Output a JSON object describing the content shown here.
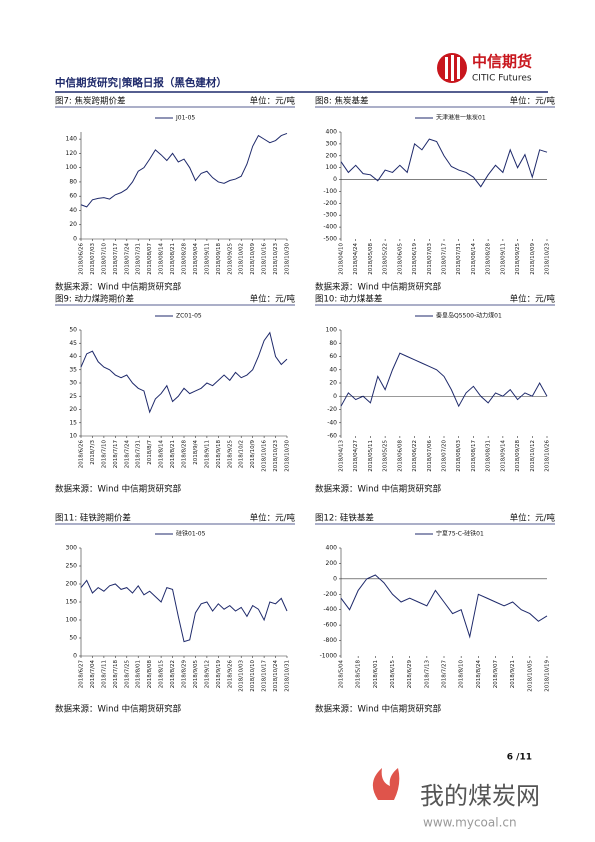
{
  "header": {
    "title": "中信期货研究|策略日报（黑色建材）",
    "logo_cn": "中信期货",
    "logo_en": "CITIC Futures"
  },
  "figures": [
    {
      "title": "图7: 焦炭跨期价差",
      "unit": "单位：元/吨",
      "source": "数据来源：Wind  中信期货研究部"
    },
    {
      "title": "图8: 焦炭基差",
      "unit": "单位：元/吨",
      "source": "数据来源：Wind  中信期货研究部"
    },
    {
      "title": "图9: 动力煤跨期价差",
      "unit": "单位：元/吨",
      "source": "数据来源：Wind  中信期货研究部"
    },
    {
      "title": "图10: 动力煤基差",
      "unit": "单位：元/吨",
      "source": "数据来源：Wind  中信期货研究部"
    },
    {
      "title": "图11: 硅铁跨期价差",
      "unit": "单位：元/吨",
      "source": "数据来源：Wind  中信期货研究部"
    },
    {
      "title": "图12: 硅铁基差",
      "unit": "单位：元/吨",
      "source": "数据来源：Wind  中信期货研究部"
    }
  ],
  "chart_data": [
    {
      "type": "line",
      "ylim": [
        0,
        150
      ],
      "yticks": [
        0,
        20,
        40,
        60,
        80,
        100,
        120,
        140
      ],
      "categories": [
        "2018/06/26",
        null,
        "2018/07/03",
        null,
        "2018/07/10",
        null,
        "2018/07/17",
        null,
        "2018/07/24",
        null,
        "2018/07/31",
        null,
        "2018/08/07",
        null,
        "2018/08/14",
        null,
        "2018/08/21",
        null,
        "2018/08/28",
        null,
        "2018/09/04",
        null,
        "2018/09/11",
        null,
        "2018/09/18",
        null,
        "2018/09/25",
        null,
        "2018/10/02",
        null,
        "2018/10/09",
        null,
        "2018/10/16",
        null,
        "2018/10/23",
        null,
        "2018/10/30"
      ],
      "series": [
        {
          "name": "J01-05",
          "color": "#1f2a6b",
          "values": [
            48,
            45,
            55,
            57,
            58,
            56,
            62,
            65,
            70,
            80,
            95,
            100,
            112,
            125,
            118,
            110,
            120,
            108,
            112,
            100,
            82,
            92,
            95,
            86,
            80,
            78,
            82,
            84,
            88,
            105,
            130,
            145,
            140,
            135,
            138,
            145,
            148
          ]
        }
      ]
    },
    {
      "type": "line",
      "ylim": [
        -500,
        400
      ],
      "yticks": [
        -500,
        -400,
        -300,
        -200,
        -100,
        0,
        100,
        200,
        300,
        400
      ],
      "categories": [
        "2018/04/10",
        null,
        "2018/04/24",
        null,
        "2018/05/08",
        null,
        "2018/05/22",
        null,
        "2018/06/05",
        null,
        "2018/06/19",
        null,
        "2018/07/03",
        null,
        "2018/07/17",
        null,
        "2018/07/31",
        null,
        "2018/08/14",
        null,
        "2018/08/28",
        null,
        "2018/09/11",
        null,
        "2018/09/25",
        null,
        "2018/10/09",
        null,
        "2018/10/23"
      ],
      "series": [
        {
          "name": "天津港准一焦炭01",
          "color": "#1f2a6b",
          "values": [
            150,
            60,
            120,
            50,
            40,
            -10,
            80,
            60,
            120,
            60,
            300,
            250,
            340,
            320,
            200,
            110,
            80,
            60,
            20,
            -60,
            40,
            120,
            60,
            250,
            100,
            210,
            20,
            250,
            230
          ]
        }
      ]
    },
    {
      "type": "line",
      "ylim": [
        10,
        50
      ],
      "yticks": [
        10,
        15,
        20,
        25,
        30,
        35,
        40,
        45,
        50
      ],
      "categories": [
        "2018/6/26",
        null,
        "2018/7/3",
        null,
        "2018/7/10",
        null,
        "2018/7/17",
        null,
        "2018/7/24",
        null,
        "2018/7/31",
        null,
        "2018/8/7",
        null,
        "2018/8/14",
        null,
        "2018/8/21",
        null,
        "2018/8/28",
        null,
        "2018/9/4",
        null,
        "2018/9/11",
        null,
        "2018/9/18",
        null,
        "2018/9/25",
        null,
        "2018/10/2",
        null,
        "2018/10/9",
        null,
        "2018/10/16",
        null,
        "2018/10/23",
        null,
        "2018/10/30"
      ],
      "series": [
        {
          "name": "ZC01-05",
          "color": "#1f2a6b",
          "values": [
            36,
            41,
            42,
            38,
            36,
            35,
            33,
            32,
            33,
            30,
            28,
            27,
            19,
            24,
            26,
            29,
            23,
            25,
            28,
            26,
            27,
            28,
            30,
            29,
            31,
            33,
            31,
            34,
            32,
            33,
            35,
            40,
            46,
            49,
            40,
            37,
            39
          ]
        }
      ]
    },
    {
      "type": "line",
      "ylim": [
        -60,
        100
      ],
      "yticks": [
        -60,
        -40,
        -20,
        0,
        20,
        40,
        60,
        80,
        100
      ],
      "categories": [
        "2018/04/13",
        null,
        "2018/04/27",
        null,
        "2018/05/11",
        null,
        "2018/05/25",
        null,
        "2018/06/08",
        null,
        "2018/06/22",
        null,
        "2018/07/06",
        null,
        "2018/07/20",
        null,
        "2018/08/03",
        null,
        "2018/08/17",
        null,
        "2018/08/31",
        null,
        "2018/09/14",
        null,
        "2018/09/28",
        null,
        "2018/10/12",
        null,
        "2018/10/26"
      ],
      "series": [
        {
          "name": "秦皇岛Q5500-动力煤01",
          "color": "#1f2a6b",
          "values": [
            -15,
            5,
            -5,
            0,
            -10,
            30,
            10,
            40,
            65,
            60,
            55,
            50,
            45,
            40,
            30,
            10,
            -15,
            5,
            15,
            0,
            -10,
            5,
            0,
            10,
            -5,
            5,
            0,
            20,
            0
          ]
        }
      ]
    },
    {
      "type": "line",
      "ylim": [
        0,
        300
      ],
      "yticks": [
        0,
        50,
        100,
        150,
        200,
        250,
        300
      ],
      "categories": [
        "2018/6/27",
        null,
        "2018/7/04",
        null,
        "2018/7/11",
        null,
        "2018/7/18",
        null,
        "2018/7/25",
        null,
        "2018/8/01",
        null,
        "2018/8/08",
        null,
        "2018/8/15",
        null,
        "2018/8/22",
        null,
        "2018/8/29",
        null,
        "2018/9/05",
        null,
        "2018/9/12",
        null,
        "2018/9/19",
        null,
        "2018/9/26",
        null,
        "2018/10/03",
        null,
        "2018/10/10",
        null,
        "2018/10/17",
        null,
        "2018/10/24",
        null,
        "2018/10/31"
      ],
      "series": [
        {
          "name": "硅铁01-05",
          "color": "#1f2a6b",
          "values": [
            190,
            210,
            175,
            190,
            180,
            195,
            200,
            185,
            190,
            175,
            195,
            170,
            180,
            165,
            150,
            190,
            185,
            110,
            40,
            45,
            120,
            145,
            150,
            125,
            145,
            130,
            140,
            125,
            135,
            110,
            140,
            130,
            100,
            150,
            145,
            160,
            125
          ]
        }
      ]
    },
    {
      "type": "line",
      "ylim": [
        -1000,
        400
      ],
      "yticks": [
        -1000,
        -800,
        -600,
        -400,
        -200,
        0,
        200,
        400
      ],
      "categories": [
        "2018/5/04",
        null,
        "2018/5/18",
        null,
        "2018/6/01",
        null,
        "2018/6/15",
        null,
        "2018/6/29",
        null,
        "2018/7/13",
        null,
        "2018/7/27",
        null,
        "2018/8/10",
        null,
        "2018/8/24",
        null,
        "2018/9/07",
        null,
        "2018/9/21",
        null,
        "2018/10/05",
        null,
        "2018/10/19"
      ],
      "series": [
        {
          "name": "宁夏75-C-硅铁01",
          "color": "#1f2a6b",
          "values": [
            -250,
            -400,
            -150,
            0,
            50,
            -50,
            -200,
            -300,
            -250,
            -300,
            -350,
            -150,
            -300,
            -450,
            -400,
            -750,
            -200,
            -250,
            -300,
            -350,
            -300,
            -400,
            -450,
            -550,
            -480
          ]
        }
      ]
    }
  ],
  "footer": {
    "page": "6 /11"
  },
  "watermark": {
    "name": "我的煤炭网",
    "url": "www.mycoal.cn"
  }
}
